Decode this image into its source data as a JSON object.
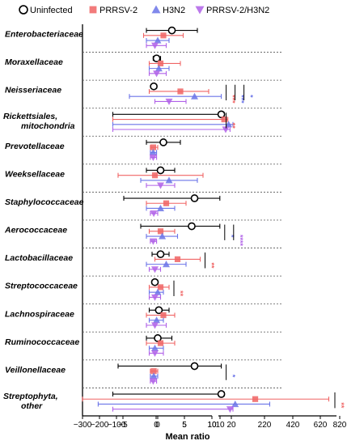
{
  "chart_data": {
    "type": "scatter",
    "xlabel": "Mean ratio",
    "legend": [
      {
        "name": "Uninfected",
        "marker": "circle",
        "color": "#000000"
      },
      {
        "name": "PRRSV-2",
        "marker": "square",
        "color": "#f06464"
      },
      {
        "name": "H3N2",
        "marker": "triangle-up",
        "color": "#6b74e8"
      },
      {
        "name": "PRRSV-2/H3N2",
        "marker": "triangle-down",
        "color": "#b061e8"
      }
    ],
    "colors": {
      "uninfected": "#000000",
      "prrsv": "#f06464",
      "h3n2": "#6b74e8",
      "dual": "#b061e8"
    },
    "axis_segments": [
      {
        "ticks": [
          -300,
          -200,
          -100,
          0
        ],
        "tick_labels": [
          "−300",
          "−200",
          "−100",
          "0"
        ],
        "range": [
          -300,
          0
        ]
      },
      {
        "ticks": [
          0,
          5,
          10
        ],
        "tick_labels": [
          "0",
          "5",
          "10"
        ],
        "range": [
          -0.8,
          10
        ]
      },
      {
        "ticks": [
          -5,
          0,
          5,
          10
        ],
        "tick_labels": [
          "−5",
          "0",
          "5",
          "10"
        ],
        "range": [
          -6,
          10
        ]
      },
      {
        "ticks": [
          10,
          20,
          220,
          420,
          620,
          820
        ],
        "tick_labels": [
          "10",
          "20",
          "220",
          "420",
          "620",
          "820"
        ],
        "range": [
          10,
          920
        ]
      }
    ],
    "families": [
      {
        "name": "Enterobacteriaceae",
        "means": [
          3.5,
          2.0,
          1.0,
          0.5
        ],
        "lo": [
          -1.0,
          -1.5,
          -1.0,
          -1.0
        ],
        "hi": [
          8.0,
          5.5,
          3.0,
          2.5
        ],
        "sig": []
      },
      {
        "name": "Moraxellaceae",
        "means": [
          0.8,
          1.5,
          1.2,
          0.8
        ],
        "lo": [
          0.2,
          -0.5,
          -0.5,
          -0.5
        ],
        "hi": [
          1.5,
          5.0,
          3.0,
          2.5
        ],
        "sig": []
      },
      {
        "name": "Neisseriaceae",
        "means": [
          0.3,
          5.0,
          7.5,
          3.0
        ],
        "lo": [
          0.0,
          -0.5,
          -4.0,
          0.5
        ],
        "hi": [
          0.8,
          10.0,
          12.0,
          6.0
        ],
        "sig": [
          {
            "label": "***",
            "color": "#f06464"
          },
          {
            "label": "***",
            "color": "#6b74e8"
          },
          {
            "label": "*",
            "color": "#6b74e8"
          }
        ]
      },
      {
        "name": "Rickettsiales, mitochondria",
        "means": [
          12.0,
          14.0,
          17.0,
          15.0
        ],
        "lo": [
          -10.0,
          -10.0,
          -10.0,
          -10.0
        ],
        "hi": [
          14.0,
          16.5,
          20.0,
          18.0
        ],
        "sig": [
          {
            "label": "**",
            "color": "#f06464"
          }
        ]
      },
      {
        "name": "Prevotellaceae",
        "means": [
          2.0,
          0.2,
          0.2,
          0.2
        ],
        "lo": [
          -1.0,
          -0.3,
          -0.3,
          -0.3
        ],
        "hi": [
          5.0,
          1.0,
          0.8,
          0.8
        ],
        "sig": []
      },
      {
        "name": "Weeksellaceae",
        "means": [
          1.5,
          0.5,
          3.0,
          1.5
        ],
        "lo": [
          -1.0,
          -6.0,
          -2.0,
          -1.0
        ],
        "hi": [
          4.0,
          9.0,
          8.0,
          4.0
        ],
        "sig": []
      },
      {
        "name": "Staphylococcaceae",
        "means": [
          7.5,
          2.5,
          1.5,
          0.3
        ],
        "lo": [
          -5.0,
          -1.0,
          -1.0,
          -0.3
        ],
        "hi": [
          11.0,
          6.0,
          4.0,
          1.0
        ],
        "sig": []
      },
      {
        "name": "Aerococcaceae",
        "means": [
          7.0,
          1.5,
          1.8,
          0.2
        ],
        "lo": [
          -2.0,
          -0.5,
          -1.0,
          -0.3
        ],
        "hi": [
          11.0,
          4.0,
          4.5,
          0.8
        ],
        "sig": [
          {
            "label": "*",
            "color": "#6b74e8"
          },
          {
            "label": "****",
            "color": "#b061e8"
          }
        ]
      },
      {
        "name": "Lactobacillaceae",
        "means": [
          1.5,
          4.5,
          2.5,
          0.5
        ],
        "lo": [
          0.0,
          0.5,
          -1.0,
          -0.5
        ],
        "hi": [
          3.0,
          8.5,
          6.0,
          1.5
        ],
        "sig": [
          {
            "label": "**",
            "color": "#f06464"
          }
        ]
      },
      {
        "name": "Streptococcaceae",
        "means": [
          0.5,
          1.5,
          1.0,
          0.5
        ],
        "lo": [
          0.0,
          -0.5,
          -0.5,
          -0.5
        ],
        "hi": [
          1.0,
          3.0,
          2.0,
          1.5
        ],
        "sig": [
          {
            "label": "**",
            "color": "#f06464"
          }
        ]
      },
      {
        "name": "Lachnospiraceae",
        "means": [
          1.2,
          2.0,
          0.8,
          0.5
        ],
        "lo": [
          -0.5,
          -1.0,
          -0.5,
          -1.0
        ],
        "hi": [
          3.0,
          4.0,
          2.0,
          2.5
        ],
        "sig": []
      },
      {
        "name": "Ruminococcaceae",
        "means": [
          1.0,
          1.5,
          0.5,
          0.5
        ],
        "lo": [
          -1.0,
          -1.0,
          -0.5,
          -0.5
        ],
        "hi": [
          3.5,
          4.0,
          2.0,
          2.0
        ],
        "sig": []
      },
      {
        "name": "Veillonellaceae",
        "means": [
          7.5,
          0.3,
          0.3,
          0.2
        ],
        "lo": [
          -6.0,
          -0.3,
          -0.3,
          -0.3
        ],
        "hi": [
          12.0,
          1.0,
          1.0,
          0.8
        ],
        "sig": [
          {
            "label": "*",
            "color": "#6b74e8"
          }
        ]
      },
      {
        "name": "Streptophyta, other",
        "means": [
          12.0,
          220.0,
          40.0,
          18.0
        ],
        "lo": [
          -10.0,
          -300.0,
          -150.0,
          -10.0
        ],
        "hi": [
          14.0,
          880.0,
          350.0,
          20.0
        ],
        "sig": [
          {
            "label": "**",
            "color": "#f06464"
          }
        ]
      }
    ]
  }
}
